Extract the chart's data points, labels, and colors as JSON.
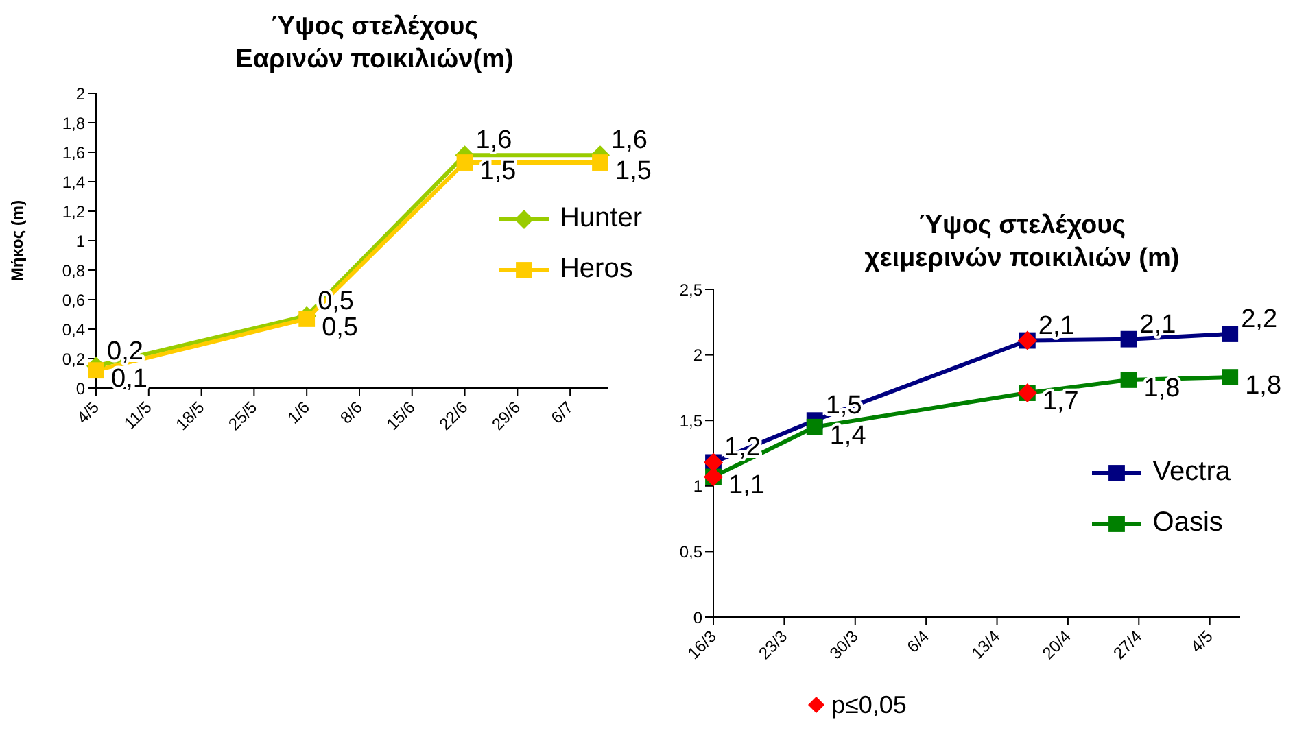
{
  "chart_data": [
    {
      "type": "line",
      "title": "Ύψος στελέχους\nΕαρινών ποικιλιών(m)",
      "ylabel": "Μήκος (m)",
      "x": [
        "--05-04",
        "--06-01",
        "--06-22",
        "--07-10"
      ],
      "series": [
        {
          "name": "Hunter",
          "color": "#99cc00",
          "marker": "diamond",
          "values": [
            0.15,
            0.49,
            1.58,
            1.58
          ],
          "value_labels": [
            "0,2",
            "0,5",
            "1,6",
            "1,6"
          ]
        },
        {
          "name": "Heros",
          "color": "#ffcc00",
          "marker": "square",
          "values": [
            0.12,
            0.47,
            1.53,
            1.53
          ],
          "value_labels": [
            "0,1",
            "0,5",
            "1,5",
            "1,5"
          ]
        }
      ],
      "xlim": [
        "--05-04",
        "--07-11"
      ],
      "xticks": [
        {
          "value": "--05-04",
          "label": "4/5"
        },
        {
          "value": "--05-11",
          "label": "11/5"
        },
        {
          "value": "--05-18",
          "label": "18/5"
        },
        {
          "value": "--05-25",
          "label": "25/5"
        },
        {
          "value": "--06-01",
          "label": "1/6"
        },
        {
          "value": "--06-08",
          "label": "8/6"
        },
        {
          "value": "--06-15",
          "label": "15/6"
        },
        {
          "value": "--06-22",
          "label": "22/6"
        },
        {
          "value": "--06-29",
          "label": "29/6"
        },
        {
          "value": "--07-06",
          "label": "6/7"
        }
      ],
      "ylim": [
        0,
        2
      ],
      "yticks": [
        0,
        {
          "value": 0.2,
          "label": "0,2"
        },
        {
          "value": 0.4,
          "label": "0,4"
        },
        {
          "value": 0.6,
          "label": "0,6"
        },
        {
          "value": 0.8,
          "label": "0,8"
        },
        1,
        {
          "value": 1.2,
          "label": "1,2"
        },
        {
          "value": 1.4,
          "label": "1,4"
        },
        {
          "value": 1.6,
          "label": "1,6"
        },
        {
          "value": 1.8,
          "label": "1,8"
        },
        2
      ],
      "grid": false,
      "legend": "right"
    },
    {
      "type": "line",
      "title": "Ύψος στελέχους\nχειμερινών ποικιλιών (m)",
      "x": [
        "--03-16",
        "--03-26",
        "--04-16",
        "--04-26",
        "--05-06"
      ],
      "series": [
        {
          "name": "Vectra",
          "color": "#000080",
          "marker": "square",
          "values": [
            1.18,
            1.5,
            2.11,
            2.12,
            2.16
          ],
          "value_labels": [
            "1,2",
            "1,5",
            "2,1",
            "2,1",
            "2,2"
          ]
        },
        {
          "name": "Oasis",
          "color": "#008000",
          "marker": "square",
          "values": [
            1.07,
            1.45,
            1.71,
            1.81,
            1.83
          ],
          "value_labels": [
            "1,1",
            "1,4",
            "1,7",
            "1,8",
            "1,8"
          ]
        },
        {
          "name": "p≤0,05",
          "type": "scatter",
          "color": "#ff0000",
          "marker": "diamond",
          "x": [
            "--03-16",
            "--04-16",
            "--03-16",
            "--04-16"
          ],
          "values": [
            1.18,
            2.11,
            1.07,
            1.71
          ]
        }
      ],
      "xlim": [
        "--03-16",
        "--05-07"
      ],
      "xticks": [
        {
          "value": "--03-16",
          "label": "16/3"
        },
        {
          "value": "--03-23",
          "label": "23/3"
        },
        {
          "value": "--03-30",
          "label": "30/3"
        },
        {
          "value": "--04-06",
          "label": "6/4"
        },
        {
          "value": "--04-13",
          "label": "13/4"
        },
        {
          "value": "--04-20",
          "label": "20/4"
        },
        {
          "value": "--04-27",
          "label": "27/4"
        },
        {
          "value": "--05-04",
          "label": "4/5"
        }
      ],
      "ylim": [
        0,
        2.5
      ],
      "yticks": [
        0,
        {
          "value": 0.5,
          "label": "0,5"
        },
        1,
        {
          "value": 1.5,
          "label": "1,5"
        },
        2,
        {
          "value": 2.5,
          "label": "2,5"
        }
      ],
      "grid": false,
      "legend": "right"
    }
  ]
}
